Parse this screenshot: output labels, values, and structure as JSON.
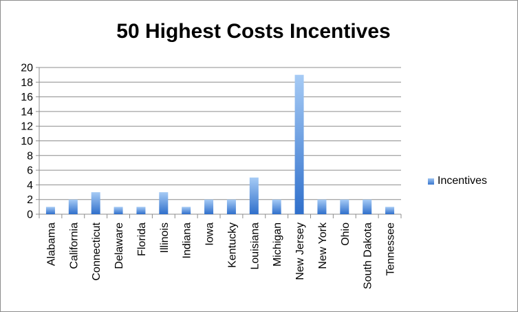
{
  "chart_data": {
    "type": "bar",
    "title": "50 Highest Costs Incentives",
    "categories": [
      "Alabama",
      "California",
      "Connecticut",
      "Delaware",
      "Florida",
      "Illinois",
      "Indiana",
      "Iowa",
      "Kentucky",
      "Louisiana",
      "Michigan",
      "New Jersey",
      "New York",
      "Ohio",
      "South Dakota",
      "Tennessee"
    ],
    "series": [
      {
        "name": "Incentives",
        "values": [
          1,
          2,
          3,
          1,
          1,
          3,
          1,
          2,
          2,
          5,
          2,
          19,
          2,
          2,
          2,
          1
        ]
      }
    ],
    "ylim": [
      0,
      20
    ],
    "yticks": [
      0,
      2,
      4,
      6,
      8,
      10,
      12,
      14,
      16,
      18,
      20
    ],
    "grid": true,
    "legend_position": "right",
    "colors": {
      "bar_top": "#a6cbf5",
      "bar_bottom": "#2f6fcb",
      "grid": "#8c8c8c",
      "axis": "#8c8c8c"
    }
  }
}
